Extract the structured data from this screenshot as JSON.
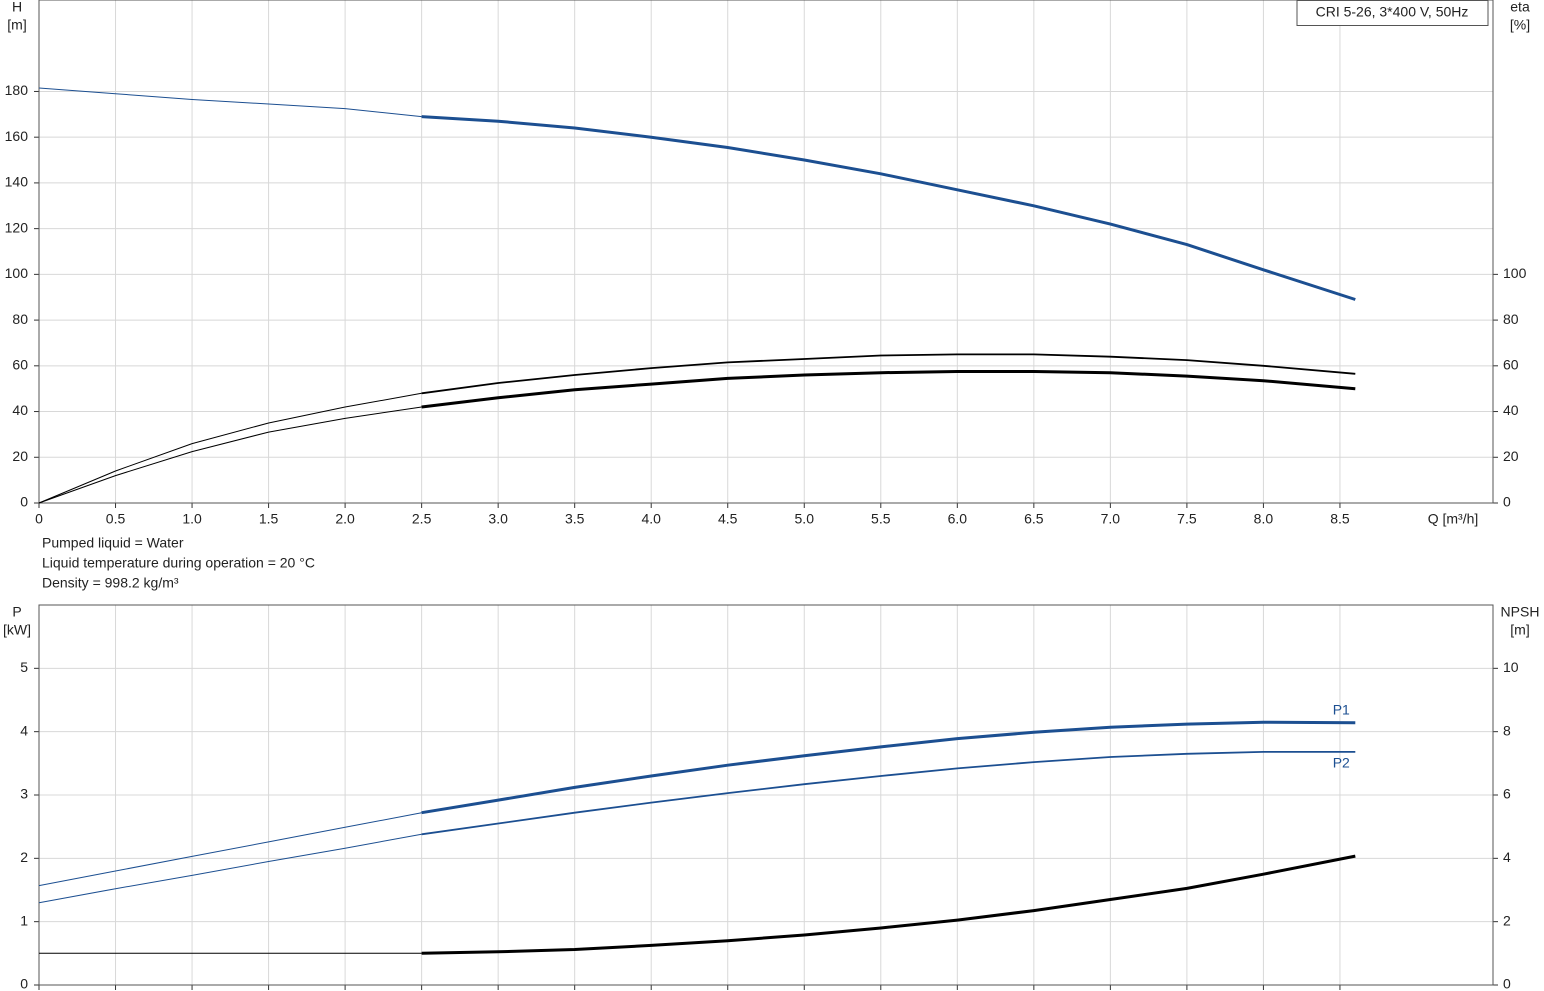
{
  "chart_data": [
    {
      "type": "line",
      "title": "CRI 5-26, 3*400 V, 50Hz",
      "ylabel": [
        "H",
        "[m]"
      ],
      "y2label": [
        "eta",
        "[%]"
      ],
      "xlabel": "Q [m³/h]",
      "notes": [
        "Pumped liquid = Water",
        "Liquid temperature during operation = 20 °C",
        "Density = 998.2 kg/m³"
      ],
      "xlim": [
        0,
        9.5
      ],
      "xticks": [
        0,
        0.5,
        {
          "value": 1,
          "label": "1.0"
        },
        1.5,
        {
          "value": 2,
          "label": "2.0"
        },
        2.5,
        {
          "value": 3,
          "label": "3.0"
        },
        3.5,
        {
          "value": 4,
          "label": "4.0"
        },
        4.5,
        {
          "value": 5,
          "label": "5.0"
        },
        5.5,
        {
          "value": 6,
          "label": "6.0"
        },
        6.5,
        {
          "value": 7,
          "label": "7.0"
        },
        7.5,
        {
          "value": 8,
          "label": "8.0"
        },
        8.5
      ],
      "xtick_labels": true,
      "ylim": [
        0,
        220
      ],
      "yticks": [
        0,
        20,
        40,
        60,
        80,
        100,
        120,
        140,
        160,
        180
      ],
      "y2lim": [
        0,
        220
      ],
      "y2ticks": [
        0,
        20,
        40,
        60,
        80,
        100
      ],
      "grid": true,
      "thick_from": 2.5,
      "x": [
        0,
        0.5,
        1,
        1.5,
        2,
        2.5,
        3,
        3.5,
        4,
        4.5,
        5,
        5.5,
        6,
        6.5,
        7,
        7.5,
        8,
        8.6
      ],
      "series": [
        {
          "color": "#1c4f91",
          "weight": "bold",
          "axis": "y",
          "values": [
            181.5,
            179,
            176.5,
            174.5,
            172.5,
            169,
            167,
            164,
            160,
            155.5,
            150,
            144,
            137,
            130,
            122,
            113,
            102,
            89
          ]
        },
        {
          "color": "#000000",
          "weight": "regular",
          "axis": "y2",
          "values": [
            0,
            14,
            26,
            35,
            42,
            48,
            52.5,
            56,
            59,
            61.5,
            63,
            64.5,
            65,
            65,
            64,
            62.5,
            60,
            56.5
          ]
        },
        {
          "color": "#000000",
          "weight": "bold",
          "axis": "y2",
          "values": [
            0,
            12,
            22.5,
            31,
            37,
            42,
            46,
            49.5,
            52,
            54.5,
            56,
            57,
            57.5,
            57.5,
            57,
            55.5,
            53.5,
            50
          ]
        }
      ]
    },
    {
      "type": "line",
      "ylabel": [
        "P",
        "[kW]"
      ],
      "y2label": [
        "NPSH",
        "[m]"
      ],
      "xlim": [
        0,
        9.5
      ],
      "xticks": [
        0,
        0.5,
        1,
        1.5,
        2,
        2.5,
        3,
        3.5,
        4,
        4.5,
        5,
        5.5,
        6,
        6.5,
        7,
        7.5,
        8,
        8.5
      ],
      "xtick_labels": false,
      "ylim": [
        0,
        6
      ],
      "yticks": [
        0,
        1,
        2,
        3,
        4,
        5
      ],
      "y2lim": [
        0,
        12
      ],
      "y2ticks": [
        0,
        2,
        4,
        6,
        8,
        10
      ],
      "grid": true,
      "thick_from": 2.5,
      "x": [
        0,
        0.5,
        1,
        1.5,
        2,
        2.5,
        3,
        3.5,
        4,
        4.5,
        5,
        5.5,
        6,
        6.5,
        7,
        7.5,
        8,
        8.6
      ],
      "series": [
        {
          "name": "P1",
          "color": "#1c4f91",
          "weight": "bold",
          "axis": "y",
          "values": [
            1.57,
            1.8,
            2.03,
            2.26,
            2.49,
            2.72,
            2.92,
            3.12,
            3.3,
            3.47,
            3.62,
            3.76,
            3.89,
            3.99,
            4.07,
            4.12,
            4.15,
            4.14
          ]
        },
        {
          "name": "P2",
          "color": "#1c4f91",
          "weight": "regular",
          "axis": "y",
          "values": [
            1.3,
            1.52,
            1.73,
            1.95,
            2.16,
            2.38,
            2.55,
            2.72,
            2.88,
            3.03,
            3.17,
            3.3,
            3.42,
            3.52,
            3.6,
            3.65,
            3.68,
            3.68
          ]
        },
        {
          "color": "#000000",
          "weight": "bold",
          "axis": "y2",
          "values": [
            1.0,
            1.0,
            1.0,
            1.0,
            1.0,
            1.0,
            1.05,
            1.12,
            1.25,
            1.4,
            1.58,
            1.8,
            2.05,
            2.35,
            2.7,
            3.05,
            3.5,
            4.07
          ]
        }
      ]
    }
  ]
}
